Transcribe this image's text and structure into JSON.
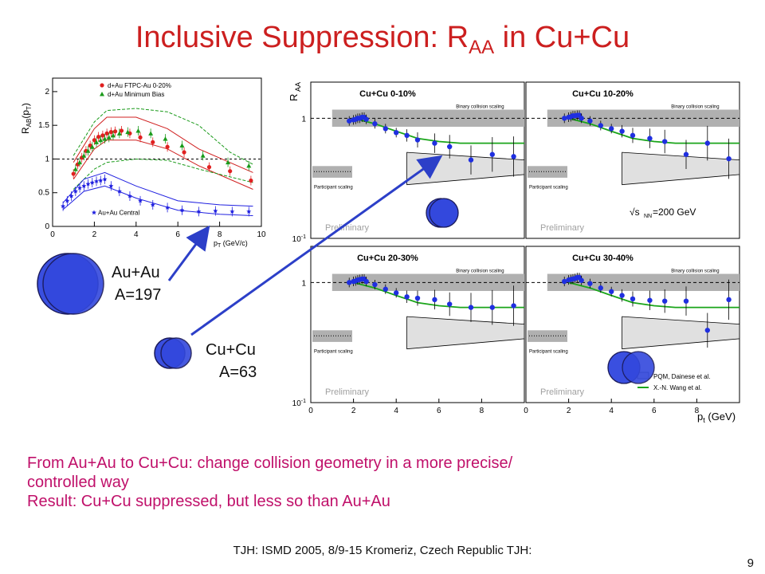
{
  "title": {
    "main": "Inclusive Suppression: R",
    "sub": "AA",
    "tail": " in Cu+Cu"
  },
  "labels": {
    "auau_name": "Au+Au",
    "auau_a": "A=197",
    "cucu_name": "Cu+Cu",
    "cucu_a": "A=63"
  },
  "body": {
    "line1": "From Au+Au to Cu+Cu: change collision geometry in a more precise/",
    "line2": "controlled way",
    "line3": "Result: Cu+Cu suppressed, but less so than Au+Au"
  },
  "footer": "TJH: ISMD 2005, 8/9-15 Kromeriz, Czech Republic TJH:",
  "page_number": "9",
  "colors": {
    "title": "#cc1f1f",
    "body": "#c0106a",
    "arrow": "#2c3fc8",
    "points": "#1f2fe0",
    "theory_green": "#1aa51a"
  },
  "chart_data": [
    {
      "type": "scatter",
      "ylabel_main": "R",
      "ylabel_sub": "AB",
      "ylabel_tail": "(p",
      "ylabel_sub2": "T",
      "ylabel_end": ")",
      "xlabel_main": "p",
      "xlabel_sub": "T",
      "xlabel_tail": " (GeV/c)",
      "xlim": [
        0,
        10
      ],
      "ylim": [
        0,
        2.2
      ],
      "xticks": [
        "0",
        "2",
        "4",
        "6",
        "8",
        "10"
      ],
      "yticks": [
        "0",
        "0.5",
        "1",
        "1.5",
        "2"
      ],
      "reference_line": 1,
      "series": [
        {
          "name": "d+Au FTPC-Au 0-20%",
          "color": "#e02020",
          "marker": "circle",
          "x": [
            1.0,
            1.2,
            1.4,
            1.6,
            1.8,
            2.0,
            2.2,
            2.4,
            2.6,
            2.8,
            3.0,
            3.3,
            3.7,
            4.2,
            4.8,
            5.5,
            6.3,
            7.5,
            8.5,
            9.5
          ],
          "y": [
            0.78,
            0.92,
            1.02,
            1.12,
            1.2,
            1.28,
            1.33,
            1.35,
            1.38,
            1.4,
            1.41,
            1.42,
            1.38,
            1.32,
            1.25,
            1.18,
            1.1,
            0.88,
            0.82,
            0.68
          ]
        },
        {
          "name": "d+Au Minimum Bias",
          "color": "#1a9a1a",
          "marker": "triangle",
          "x": [
            1.1,
            1.3,
            1.5,
            1.7,
            1.9,
            2.1,
            2.3,
            2.5,
            2.7,
            2.9,
            3.2,
            3.6,
            4.1,
            4.7,
            5.4,
            6.2,
            7.2,
            8.4,
            9.4
          ],
          "y": [
            0.85,
            0.95,
            1.05,
            1.12,
            1.18,
            1.25,
            1.28,
            1.3,
            1.32,
            1.35,
            1.38,
            1.4,
            1.42,
            1.38,
            1.3,
            1.2,
            1.05,
            0.95,
            0.9
          ]
        },
        {
          "name": "Au+Au Central",
          "color": "#2020e0",
          "marker": "star",
          "x": [
            0.5,
            0.7,
            0.9,
            1.1,
            1.3,
            1.5,
            1.7,
            1.9,
            2.1,
            2.3,
            2.5,
            2.8,
            3.2,
            3.7,
            4.2,
            4.8,
            5.5,
            6.2,
            7.0,
            7.8,
            8.6,
            9.4
          ],
          "y": [
            0.3,
            0.38,
            0.45,
            0.52,
            0.57,
            0.6,
            0.63,
            0.65,
            0.67,
            0.68,
            0.7,
            0.6,
            0.52,
            0.45,
            0.38,
            0.32,
            0.28,
            0.24,
            0.22,
            0.23,
            0.22,
            0.22
          ]
        }
      ]
    },
    {
      "type": "scatter",
      "ylabel_main": "R",
      "ylabel_sub": "AA",
      "xlabel_main": "p",
      "xlabel_sub": "t",
      "xlabel_tail": " (GeV)",
      "xlim": [
        0,
        10
      ],
      "ylim_log": [
        0.1,
        2.0
      ],
      "log_y": true,
      "xticks": [
        "0",
        "2",
        "4",
        "6",
        "8"
      ],
      "yticks": [
        "10^-1",
        "1"
      ],
      "note": "√s_NN=200 GeV",
      "panels": [
        {
          "title": "Cu+Cu 0-10%",
          "x": [
            1.8,
            2.0,
            2.1,
            2.2,
            2.3,
            2.4,
            2.5,
            2.6,
            3.0,
            3.5,
            4.0,
            4.5,
            5.0,
            5.8,
            6.5,
            7.5,
            8.5,
            9.5
          ],
          "y": [
            0.95,
            0.97,
            0.98,
            1.0,
            1.0,
            1.02,
            1.02,
            0.98,
            0.9,
            0.82,
            0.76,
            0.72,
            0.66,
            0.62,
            0.58,
            0.45,
            0.5,
            0.48
          ]
        },
        {
          "title": "Cu+Cu 10-20%",
          "x": [
            1.8,
            2.0,
            2.1,
            2.2,
            2.3,
            2.4,
            2.5,
            2.6,
            3.0,
            3.5,
            4.0,
            4.5,
            5.0,
            5.8,
            6.5,
            7.5,
            8.5,
            9.5
          ],
          "y": [
            1.0,
            1.02,
            1.03,
            1.05,
            1.05,
            1.06,
            1.06,
            1.0,
            0.95,
            0.87,
            0.82,
            0.78,
            0.72,
            0.68,
            0.64,
            0.5,
            0.62,
            0.46
          ]
        },
        {
          "title": "Cu+Cu 20-30%",
          "x": [
            1.8,
            2.0,
            2.1,
            2.2,
            2.3,
            2.4,
            2.5,
            2.6,
            3.0,
            3.5,
            4.0,
            4.5,
            5.0,
            5.8,
            6.5,
            7.5,
            8.5,
            9.5
          ],
          "y": [
            1.0,
            1.02,
            1.03,
            1.05,
            1.06,
            1.07,
            1.07,
            1.02,
            0.96,
            0.88,
            0.82,
            0.76,
            0.74,
            0.72,
            0.66,
            0.62,
            0.62,
            0.64
          ]
        },
        {
          "title": "Cu+Cu 30-40%",
          "x": [
            1.8,
            2.0,
            2.1,
            2.2,
            2.3,
            2.4,
            2.5,
            2.6,
            3.0,
            3.5,
            4.0,
            4.5,
            5.0,
            5.8,
            6.5,
            7.5,
            8.5,
            9.5
          ],
          "y": [
            1.02,
            1.05,
            1.06,
            1.07,
            1.08,
            1.1,
            1.1,
            1.04,
            0.98,
            0.9,
            0.84,
            0.78,
            0.73,
            0.71,
            0.7,
            0.7,
            0.4,
            0.72
          ]
        }
      ],
      "legend": [
        "PQM, Dainese et al.",
        "X.-N. Wang et al."
      ],
      "labels": {
        "binary": "Binary collision scaling",
        "participant": "Participant scaling",
        "preliminary": "Preliminary"
      }
    }
  ]
}
